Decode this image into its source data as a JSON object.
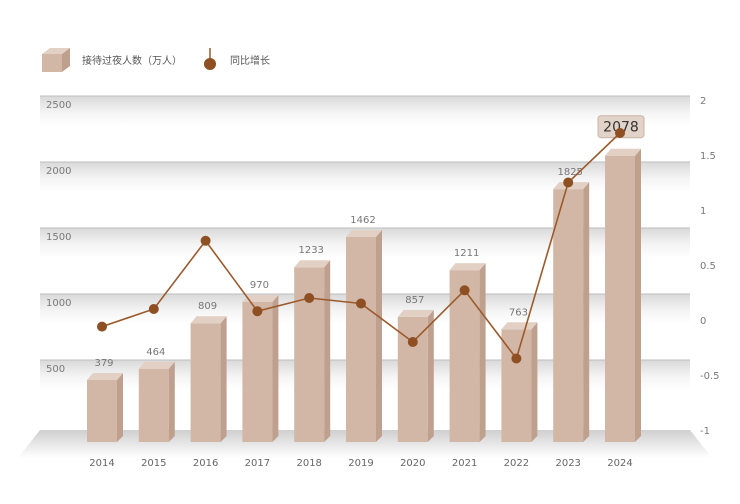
{
  "legend": {
    "bar_label": "接待过夜人数（万人）",
    "line_label": "同比增长"
  },
  "colors": {
    "bar_front": "#d2b7a7",
    "bar_side": "#bfa08f",
    "bar_top": "#e3d0c4",
    "line": "#9b5a2c",
    "point": "#8e4f22",
    "highlight_label_bg": "#e2d3c8"
  },
  "chart_data": {
    "type": "bar",
    "title": "",
    "xlabel": "",
    "ylabel": "",
    "categories": [
      "2014",
      "2015",
      "2016",
      "2017",
      "2018",
      "2019",
      "2020",
      "2021",
      "2022",
      "2023",
      "2024"
    ],
    "series": [
      {
        "name": "接待过夜人数（万人）",
        "type": "bar",
        "axis": "left",
        "values": [
          379,
          464,
          809,
          970,
          1233,
          1462,
          857,
          1211,
          763,
          1825,
          2078
        ]
      },
      {
        "name": "同比增长",
        "type": "line",
        "axis": "right",
        "values": [
          -0.06,
          0.1,
          0.72,
          0.08,
          0.2,
          0.15,
          -0.2,
          0.27,
          -0.35,
          1.25,
          1.7
        ]
      }
    ],
    "y_left": {
      "min": 0,
      "max": 2500,
      "ticks": [
        "500",
        "1000",
        "1500",
        "2000",
        "2500"
      ]
    },
    "y_right": {
      "min": -1,
      "max": 2,
      "ticks": [
        "-1",
        "-0.5",
        "0",
        "0.5",
        "1",
        "1.5",
        "2"
      ]
    },
    "highlight_label": "2078",
    "grid": true,
    "legend_position": "top-left"
  }
}
